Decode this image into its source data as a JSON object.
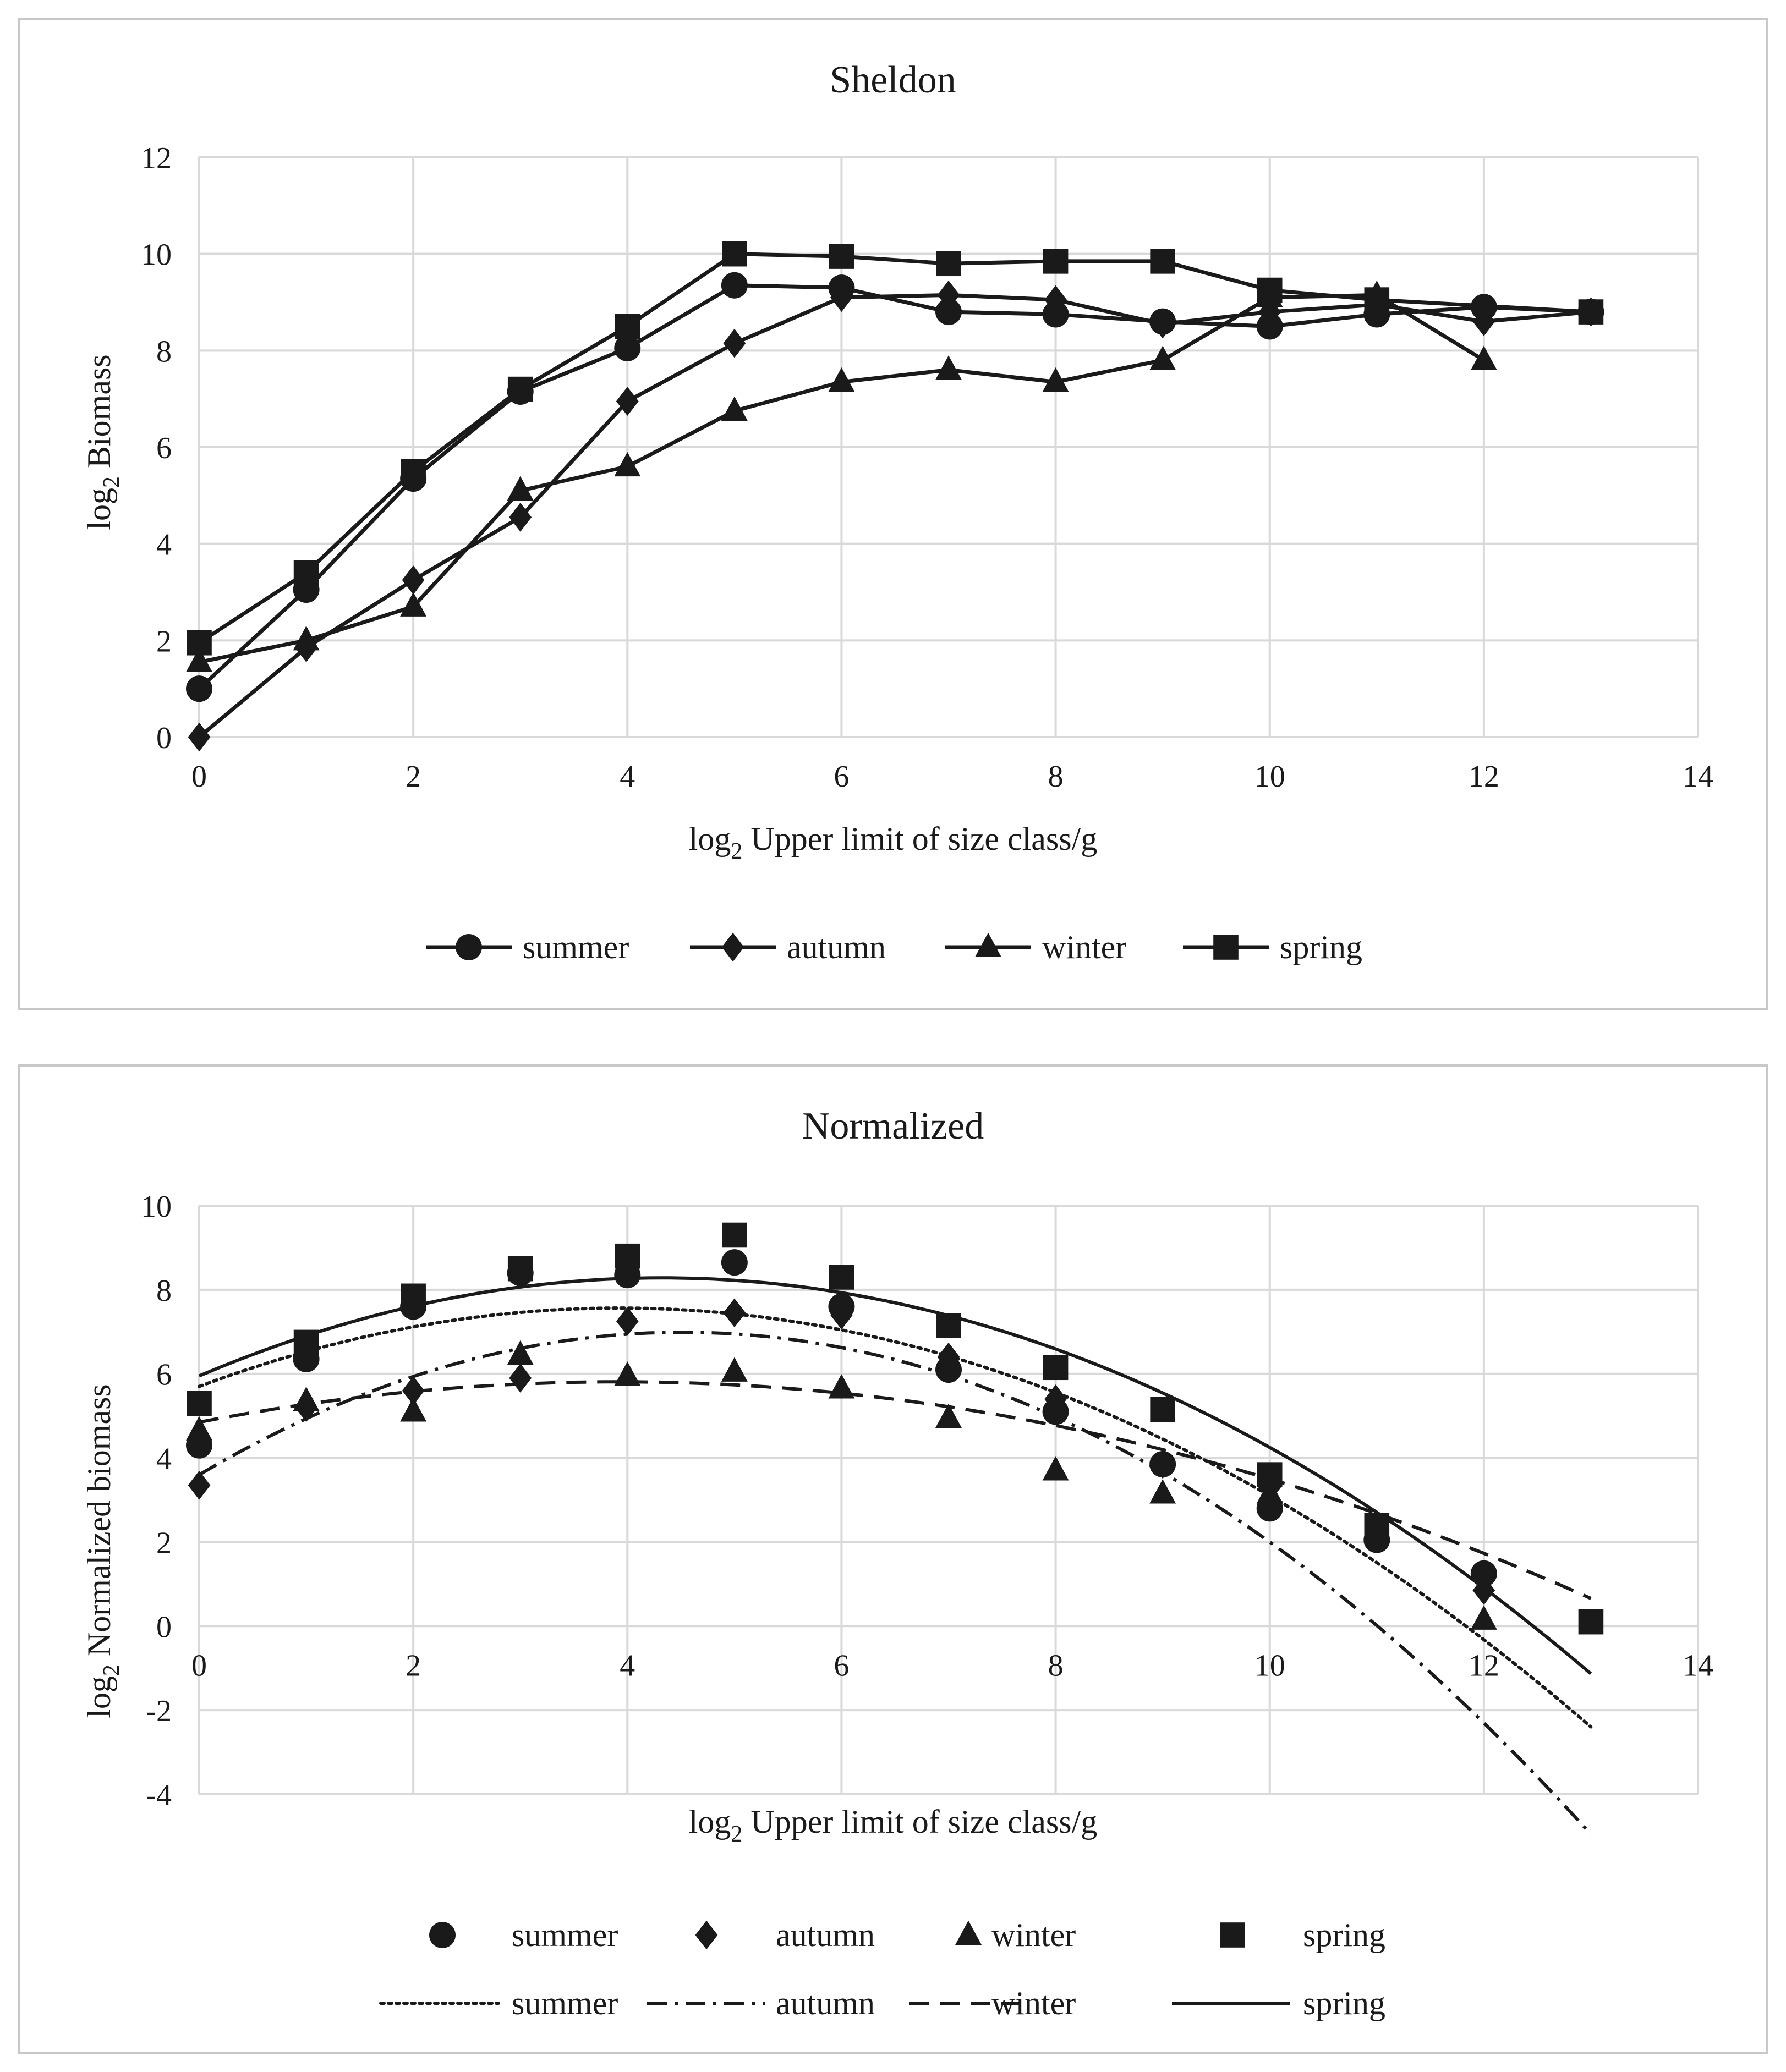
{
  "chart_data": [
    {
      "type": "line",
      "title": "Sheldon",
      "xlabel_main": "log",
      "xlabel_sub": "2",
      "xlabel_rest": " Upper limit of size class/g",
      "ylabel_main": "log",
      "ylabel_sub": "2",
      "ylabel_rest": " Biomass",
      "xlim": [
        0,
        14
      ],
      "ylim": [
        0,
        12
      ],
      "xticks": [
        0,
        2,
        4,
        6,
        8,
        10,
        12,
        14
      ],
      "yticks": [
        0,
        2,
        4,
        6,
        8,
        10,
        12
      ],
      "grid": true,
      "legend_position": "bottom",
      "series": [
        {
          "name": "summer",
          "marker": "circle",
          "x": [
            0,
            1,
            2,
            3,
            4,
            5,
            6,
            7,
            8,
            9,
            10,
            11,
            12,
            13
          ],
          "y": [
            1.0,
            3.05,
            5.35,
            7.15,
            8.05,
            9.35,
            9.3,
            8.8,
            8.75,
            8.6,
            8.5,
            8.75,
            8.9,
            8.8
          ]
        },
        {
          "name": "autumn",
          "marker": "diamond",
          "x": [
            0,
            1,
            2,
            3,
            4,
            5,
            6,
            7,
            8,
            9,
            10,
            11,
            12,
            13
          ],
          "y": [
            0.0,
            1.85,
            3.25,
            4.55,
            6.95,
            8.15,
            9.1,
            9.15,
            9.05,
            8.55,
            8.8,
            8.95,
            8.6,
            8.8
          ]
        },
        {
          "name": "winter",
          "marker": "triangle",
          "x": [
            0,
            1,
            2,
            3,
            4,
            5,
            6,
            7,
            8,
            9,
            10,
            11,
            12
          ],
          "y": [
            1.55,
            2.0,
            2.7,
            5.1,
            5.6,
            6.75,
            7.35,
            7.6,
            7.35,
            7.8,
            9.1,
            9.15,
            7.8
          ]
        },
        {
          "name": "spring",
          "marker": "square",
          "x": [
            0,
            1,
            2,
            3,
            4,
            5,
            6,
            7,
            8,
            9,
            10,
            11,
            13
          ],
          "y": [
            1.95,
            3.4,
            5.5,
            7.2,
            8.5,
            10.0,
            9.95,
            9.8,
            9.85,
            9.85,
            9.25,
            9.05,
            8.8
          ]
        }
      ]
    },
    {
      "type": "scatter",
      "title": "Normalized",
      "xlabel_main": "log",
      "xlabel_sub": "2",
      "xlabel_rest": " Upper limit of size class/g",
      "ylabel_main": "log",
      "ylabel_sub": "2",
      "ylabel_rest": " Normalized biomass",
      "xlim": [
        0,
        14
      ],
      "ylim": [
        -4,
        10
      ],
      "xticks": [
        0,
        2,
        4,
        6,
        8,
        10,
        12,
        14
      ],
      "yticks": [
        -4,
        -2,
        0,
        2,
        4,
        6,
        8,
        10
      ],
      "grid": true,
      "legend_position": "bottom",
      "series": [
        {
          "name": "summer",
          "marker": "circle",
          "x": [
            0,
            1,
            2,
            3,
            4,
            5,
            6,
            7,
            8,
            9,
            10,
            11,
            12
          ],
          "y": [
            4.3,
            6.35,
            7.6,
            8.4,
            8.35,
            8.65,
            7.6,
            6.1,
            5.1,
            3.85,
            2.8,
            2.05,
            1.25
          ]
        },
        {
          "name": "autumn",
          "marker": "diamond",
          "x": [
            0,
            1,
            2,
            3,
            4,
            5,
            6,
            7,
            8,
            9,
            10,
            11,
            12
          ],
          "y": [
            3.35,
            5.2,
            5.6,
            5.9,
            7.25,
            7.45,
            7.4,
            6.4,
            5.4,
            3.85,
            3.3,
            2.2,
            0.85
          ]
        },
        {
          "name": "winter",
          "marker": "triangle",
          "x": [
            0,
            1,
            2,
            3,
            4,
            5,
            6,
            7,
            8,
            9,
            10,
            11,
            12
          ],
          "y": [
            4.65,
            5.35,
            5.1,
            6.45,
            5.95,
            6.05,
            5.65,
            4.95,
            3.7,
            3.15,
            3.15,
            2.2,
            0.15
          ]
        },
        {
          "name": "spring",
          "marker": "square",
          "x": [
            0,
            1,
            2,
            3,
            4,
            5,
            6,
            7,
            8,
            9,
            10,
            11,
            13
          ],
          "y": [
            5.3,
            6.75,
            7.85,
            8.5,
            8.8,
            9.3,
            8.3,
            7.15,
            6.15,
            5.15,
            3.6,
            2.4,
            0.1
          ]
        }
      ],
      "trendlines": [
        {
          "name": "summer",
          "style": "dotted",
          "coeffs": [
            5.7,
            0.95,
            -0.121
          ]
        },
        {
          "name": "autumn",
          "style": "dash-dot",
          "coeffs": [
            3.6,
            1.5,
            -0.166
          ]
        },
        {
          "name": "winter",
          "style": "dashed",
          "coeffs": [
            4.85,
            0.49,
            -0.0625
          ]
        },
        {
          "name": "spring",
          "style": "solid",
          "coeffs": [
            5.95,
            1.08,
            -0.125
          ]
        }
      ],
      "trend_x_range": [
        0,
        13
      ]
    }
  ]
}
